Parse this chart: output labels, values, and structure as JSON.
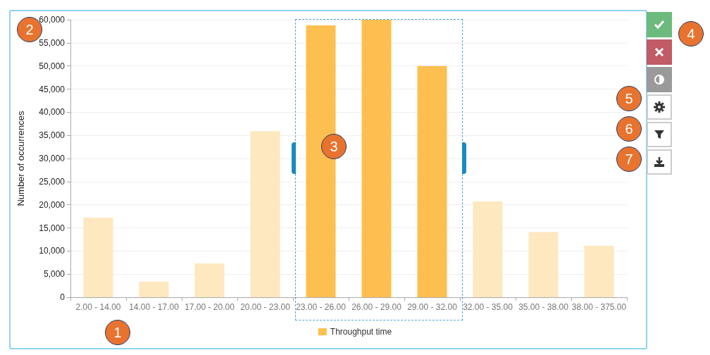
{
  "chart_data": {
    "type": "bar",
    "ylabel": "Number of occurrences",
    "categories": [
      "2.00 - 14.00",
      "14.00 - 17.00",
      "17.00 - 20.00",
      "20.00 - 23.00",
      "23.00 - 26.00",
      "26.00 - 29.00",
      "29.00 - 32.00",
      "32.00 - 35.00",
      "35.00 - 38.00",
      "38.00 - 375.00"
    ],
    "series": [
      {
        "name": "Throughput time",
        "color": "#fdbf4f",
        "values": [
          17200,
          3400,
          7300,
          35900,
          58800,
          60000,
          50000,
          20700,
          14100,
          11100
        ],
        "colors": [
          "#fde8bf",
          "#fde8bf",
          "#fde8bf",
          "#fde8bf",
          "#fdbf4f",
          "#fdbf4f",
          "#fdbf4f",
          "#fde8bf",
          "#fde8bf",
          "#fde8bf"
        ]
      }
    ],
    "ylim": [
      0,
      60000
    ],
    "yticks": [
      {
        "value": 0,
        "label": "0"
      },
      {
        "value": 5000,
        "label": "5,000"
      },
      {
        "value": 10000,
        "label": "10,000"
      },
      {
        "value": 15000,
        "label": "15,000"
      },
      {
        "value": 20000,
        "label": "20,000"
      },
      {
        "value": 25000,
        "label": "25,000"
      },
      {
        "value": 30000,
        "label": "30,000"
      },
      {
        "value": 35000,
        "label": "35,000"
      },
      {
        "value": 40000,
        "label": "40,000"
      },
      {
        "value": 45000,
        "label": "45,000"
      },
      {
        "value": 50000,
        "label": "50,000"
      },
      {
        "value": 55000,
        "label": "55,000"
      },
      {
        "value": 60000,
        "label": "60,000"
      }
    ],
    "grid": "y",
    "legend": "bottom",
    "annotations": [
      "1",
      "2",
      "3",
      "4",
      "5",
      "6",
      "7"
    ]
  }
}
